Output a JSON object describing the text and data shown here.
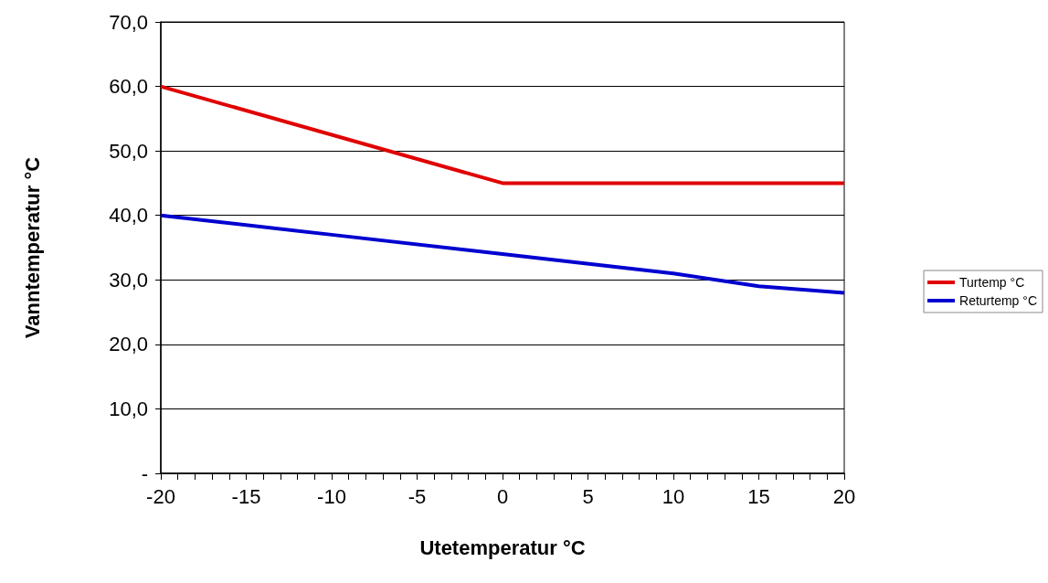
{
  "chart_data": {
    "type": "line",
    "xlabel": "Utetemperatur °C",
    "ylabel": "Vanntemperatur °C",
    "xlim": [
      -20,
      20
    ],
    "xticks": [
      -20,
      {
        "value": -19,
        "label": null
      },
      {
        "value": -18,
        "label": null
      },
      {
        "value": -17,
        "label": null
      },
      {
        "value": -16,
        "label": null
      },
      -15,
      {
        "value": -14,
        "label": null
      },
      {
        "value": -13,
        "label": null
      },
      {
        "value": -12,
        "label": null
      },
      {
        "value": -11,
        "label": null
      },
      -10,
      {
        "value": -9,
        "label": null
      },
      {
        "value": -8,
        "label": null
      },
      {
        "value": -7,
        "label": null
      },
      {
        "value": -6,
        "label": null
      },
      -5,
      {
        "value": -4,
        "label": null
      },
      {
        "value": -3,
        "label": null
      },
      {
        "value": -2,
        "label": null
      },
      {
        "value": -1,
        "label": null
      },
      0,
      {
        "value": 1,
        "label": null
      },
      {
        "value": 2,
        "label": null
      },
      {
        "value": 3,
        "label": null
      },
      {
        "value": 4,
        "label": null
      },
      5,
      {
        "value": 6,
        "label": null
      },
      {
        "value": 7,
        "label": null
      },
      {
        "value": 8,
        "label": null
      },
      {
        "value": 9,
        "label": null
      },
      10,
      {
        "value": 11,
        "label": null
      },
      {
        "value": 12,
        "label": null
      },
      {
        "value": 13,
        "label": null
      },
      {
        "value": 14,
        "label": null
      },
      15,
      {
        "value": 16,
        "label": null
      },
      {
        "value": 17,
        "label": null
      },
      {
        "value": 18,
        "label": null
      },
      {
        "value": 19,
        "label": null
      },
      20
    ],
    "ylim": [
      0,
      70
    ],
    "yticks": [
      {
        "value": 0,
        "label": "-"
      },
      {
        "value": 10,
        "label": "10,0"
      },
      {
        "value": 20,
        "label": "20,0"
      },
      {
        "value": 30,
        "label": "30,0"
      },
      {
        "value": 40,
        "label": "40,0"
      },
      {
        "value": 50,
        "label": "50,0"
      },
      {
        "value": 60,
        "label": "60,0"
      },
      {
        "value": 70,
        "label": "70,0"
      }
    ],
    "grid": "y",
    "legend": "right",
    "marker": "none",
    "line_style": "solid",
    "series": [
      {
        "name": "Turtemp °C",
        "color": "#e00000",
        "x": [
          -20,
          0,
          20
        ],
        "values": [
          60,
          45,
          45
        ]
      },
      {
        "name": "Returtemp °C",
        "color": "#0000d0",
        "x": [
          -20,
          -10,
          0,
          10,
          15,
          20
        ],
        "values": [
          40,
          37,
          34,
          31,
          29,
          28
        ]
      }
    ]
  }
}
